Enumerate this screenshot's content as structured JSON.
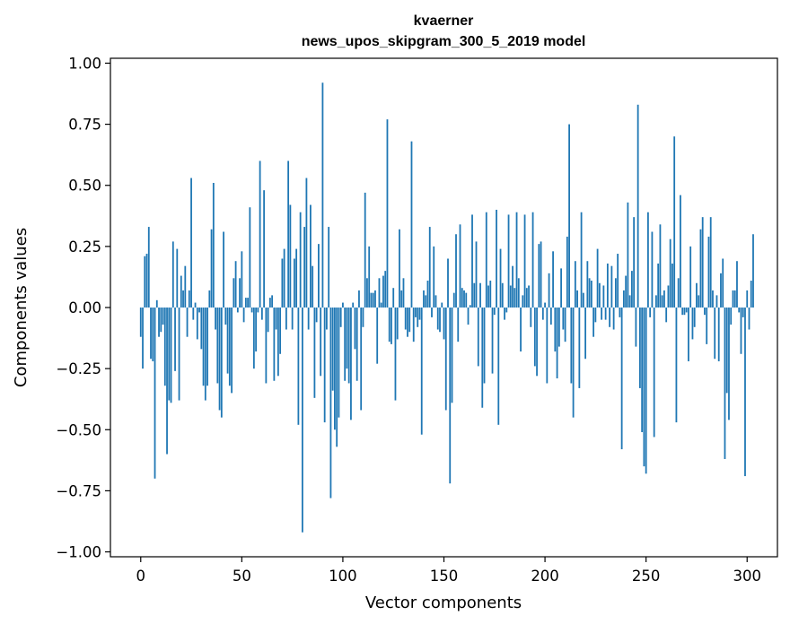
{
  "chart_data": {
    "type": "bar",
    "title_lines": [
      "kvaerner",
      "news_upos_skipgram_300_5_2019 model"
    ],
    "xlabel": "Vector components",
    "ylabel": "Components values",
    "xlim": [
      -15,
      315
    ],
    "ylim": [
      -1.02,
      1.02
    ],
    "xticks": [
      0,
      50,
      100,
      150,
      200,
      250,
      300
    ],
    "xtick_labels": [
      "0",
      "50",
      "100",
      "150",
      "200",
      "250",
      "300"
    ],
    "yticks": [
      1.0,
      0.75,
      0.5,
      0.25,
      0.0,
      -0.25,
      -0.5,
      -0.75,
      -1.0
    ],
    "ytick_labels": [
      "1.00",
      "0.75",
      "0.50",
      "0.25",
      "0.00",
      "−0.25",
      "−0.50",
      "−0.75",
      "−1.00"
    ],
    "bar_color": "#1f77b4",
    "values": [
      -0.12,
      -0.25,
      0.21,
      0.22,
      0.33,
      -0.21,
      -0.22,
      -0.7,
      0.03,
      -0.12,
      -0.1,
      -0.07,
      -0.32,
      -0.6,
      -0.38,
      -0.39,
      0.27,
      -0.26,
      0.24,
      -0.38,
      0.13,
      0.07,
      0.17,
      -0.12,
      0.07,
      0.53,
      -0.05,
      0.02,
      -0.13,
      -0.02,
      -0.17,
      -0.32,
      -0.38,
      -0.32,
      0.07,
      0.32,
      0.51,
      -0.09,
      -0.31,
      -0.42,
      -0.45,
      0.31,
      -0.07,
      -0.27,
      -0.32,
      -0.35,
      0.12,
      0.19,
      -0.02,
      0.12,
      0.23,
      -0.06,
      0.04,
      0.04,
      0.41,
      -0.02,
      -0.25,
      -0.18,
      -0.02,
      0.6,
      -0.05,
      0.48,
      -0.31,
      -0.1,
      0.04,
      0.05,
      -0.3,
      -0.09,
      -0.28,
      -0.19,
      0.2,
      0.24,
      -0.09,
      0.6,
      0.42,
      -0.09,
      0.2,
      0.24,
      -0.48,
      0.39,
      -0.92,
      0.33,
      0.53,
      -0.09,
      0.42,
      0.17,
      -0.37,
      -0.06,
      0.26,
      -0.28,
      0.92,
      -0.47,
      -0.09,
      0.33,
      -0.78,
      -0.34,
      -0.5,
      -0.57,
      -0.45,
      -0.08,
      0.02,
      -0.3,
      -0.25,
      -0.31,
      -0.46,
      0.02,
      -0.17,
      -0.3,
      0.07,
      -0.42,
      -0.08,
      0.47,
      0.12,
      0.25,
      0.06,
      0.06,
      0.07,
      -0.23,
      0.12,
      0.02,
      0.13,
      0.15,
      0.77,
      -0.14,
      -0.15,
      0.08,
      -0.38,
      -0.13,
      0.32,
      0.07,
      0.12,
      -0.09,
      -0.12,
      -0.1,
      0.68,
      -0.14,
      -0.04,
      -0.08,
      -0.05,
      -0.52,
      0.07,
      0.05,
      0.11,
      0.33,
      -0.04,
      0.25,
      0.05,
      -0.09,
      -0.1,
      0.02,
      -0.13,
      -0.42,
      0.2,
      -0.72,
      -0.39,
      0.06,
      0.3,
      -0.14,
      0.34,
      0.08,
      0.07,
      0.06,
      -0.07,
      0.01,
      0.38,
      0.1,
      0.27,
      -0.24,
      0.1,
      -0.41,
      -0.31,
      0.39,
      0.09,
      0.11,
      -0.27,
      -0.03,
      0.4,
      -0.48,
      0.24,
      0.1,
      -0.05,
      -0.02,
      0.38,
      0.09,
      0.17,
      0.08,
      0.39,
      0.12,
      -0.18,
      0.05,
      0.38,
      0.08,
      0.09,
      -0.08,
      0.39,
      -0.24,
      -0.28,
      0.26,
      0.27,
      -0.05,
      0.02,
      -0.31,
      0.14,
      -0.07,
      0.23,
      -0.18,
      -0.29,
      -0.16,
      0.16,
      -0.09,
      -0.14,
      0.29,
      0.75,
      -0.31,
      -0.45,
      0.19,
      0.07,
      -0.33,
      0.39,
      0.06,
      -0.21,
      0.19,
      0.12,
      0.11,
      -0.12,
      -0.06,
      0.24,
      0.1,
      -0.05,
      0.09,
      -0.05,
      0.18,
      -0.08,
      0.17,
      -0.09,
      0.12,
      0.22,
      -0.04,
      -0.58,
      0.07,
      0.13,
      0.43,
      0.05,
      0.15,
      0.37,
      -0.16,
      0.83,
      -0.33,
      -0.51,
      -0.65,
      -0.68,
      0.39,
      -0.04,
      0.31,
      -0.53,
      0.05,
      0.18,
      0.34,
      0.05,
      0.07,
      -0.06,
      0.09,
      0.28,
      0.18,
      0.7,
      -0.47,
      0.12,
      0.46,
      -0.03,
      -0.03,
      -0.02,
      -0.22,
      0.25,
      -0.13,
      -0.08,
      0.1,
      0.05,
      0.32,
      0.37,
      -0.03,
      -0.15,
      0.29,
      0.37,
      0.07,
      -0.21,
      0.05,
      -0.22,
      0.14,
      0.2,
      -0.62,
      -0.35,
      -0.46,
      -0.07,
      0.07,
      0.07,
      0.19,
      -0.02,
      -0.19,
      -0.04,
      -0.69,
      0.07,
      -0.09,
      0.11,
      0.3
    ]
  }
}
